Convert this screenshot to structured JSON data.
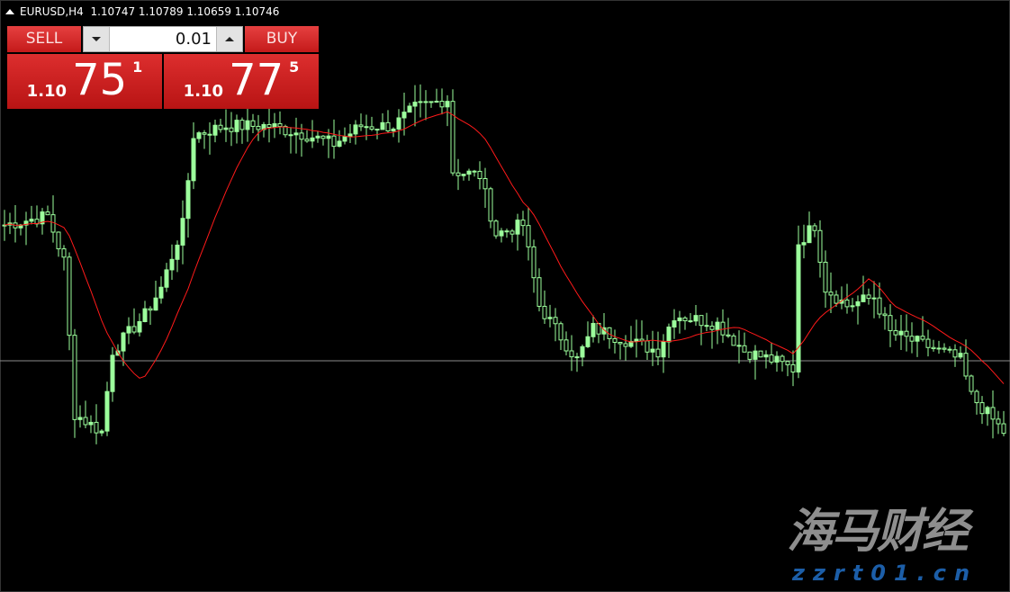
{
  "header": {
    "symbol": "EURUSD,H4",
    "ohlc": "1.10747 1.10789 1.10659 1.10746"
  },
  "trade_panel": {
    "sell_label": "SELL",
    "buy_label": "BUY",
    "lot_value": "0.01",
    "sell_price": {
      "prefix": "1.10",
      "big": "75",
      "sup": "1"
    },
    "buy_price": {
      "prefix": "1.10",
      "big": "77",
      "sup": "5"
    }
  },
  "watermark": {
    "text": "海马财经",
    "url": "zzrt01.cn"
  },
  "colors": {
    "bull": "#9cff9c",
    "bear": "#ffffff",
    "ma": "#ff1a1a",
    "hline": "#8a8a8a",
    "panel": "#d42424"
  },
  "chart_data": {
    "type": "candlestick",
    "symbol": "EURUSD",
    "timeframe": "H4",
    "hline_price": 1.11062,
    "close_path": [
      [
        0,
        1.11666
      ],
      [
        8,
        1.11706
      ],
      [
        11,
        1.11506
      ],
      [
        13,
        1.10826
      ],
      [
        18,
        1.10746
      ],
      [
        20,
        1.11106
      ],
      [
        26,
        1.11266
      ],
      [
        29,
        1.11386
      ],
      [
        33,
        1.11666
      ],
      [
        35,
        1.12066
      ],
      [
        41,
        1.12106
      ],
      [
        49,
        1.12106
      ],
      [
        56,
        1.12066
      ],
      [
        61,
        1.12026
      ],
      [
        66,
        1.12106
      ],
      [
        72,
        1.12106
      ],
      [
        76,
        1.12186
      ],
      [
        82,
        1.12226
      ],
      [
        83,
        1.11906
      ],
      [
        88,
        1.11886
      ],
      [
        91,
        1.11626
      ],
      [
        96,
        1.11666
      ],
      [
        99,
        1.11306
      ],
      [
        106,
        1.11066
      ],
      [
        109,
        1.11206
      ],
      [
        116,
        1.11146
      ],
      [
        121,
        1.11106
      ],
      [
        124,
        1.11266
      ],
      [
        132,
        1.11226
      ],
      [
        137,
        1.11106
      ],
      [
        142,
        1.11066
      ],
      [
        146,
        1.11026
      ],
      [
        147,
        1.11586
      ],
      [
        150,
        1.11666
      ],
      [
        152,
        1.11386
      ],
      [
        156,
        1.11306
      ],
      [
        161,
        1.11346
      ],
      [
        164,
        1.11186
      ],
      [
        171,
        1.11126
      ],
      [
        177,
        1.11066
      ],
      [
        179,
        1.10906
      ],
      [
        185,
        1.10746
      ]
    ]
  }
}
